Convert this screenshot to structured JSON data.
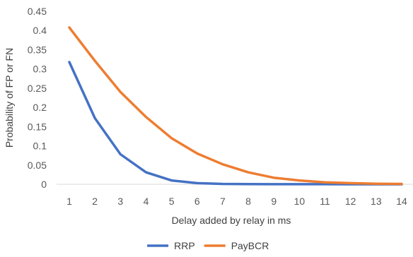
{
  "chart_data": {
    "type": "line",
    "title": "",
    "xlabel": "Delay added by relay in ms",
    "ylabel": "Probability of  FP or FN",
    "x": [
      1,
      2,
      3,
      4,
      5,
      6,
      7,
      8,
      9,
      10,
      11,
      12,
      13,
      14
    ],
    "x_tick_labels": [
      "1",
      "2",
      "3",
      "4",
      "5",
      "6",
      "7",
      "8",
      "9",
      "10",
      "11",
      "12",
      "13",
      "14"
    ],
    "ylim": [
      0,
      0.45
    ],
    "y_ticks": [
      0,
      0.05,
      0.1,
      0.15,
      0.2,
      0.25,
      0.3,
      0.35,
      0.4,
      0.45
    ],
    "y_tick_labels": [
      "0",
      "0.05",
      "0.1",
      "0.15",
      "0.2",
      "0.25",
      "0.3",
      "0.35",
      "0.4",
      "0.45"
    ],
    "grid": false,
    "legend_position": "bottom",
    "series": [
      {
        "name": "RRP",
        "color": "#4472C4",
        "values": [
          0.318,
          0.172,
          0.078,
          0.031,
          0.01,
          0.003,
          0.001,
          0.0005,
          0.0002,
          0.0001,
          0.0001,
          0.0,
          0.0,
          0.0
        ]
      },
      {
        "name": "PayBCR",
        "color": "#ED7D31",
        "values": [
          0.408,
          0.321,
          0.24,
          0.175,
          0.12,
          0.08,
          0.052,
          0.031,
          0.017,
          0.01,
          0.005,
          0.003,
          0.0015,
          0.001
        ]
      }
    ]
  }
}
